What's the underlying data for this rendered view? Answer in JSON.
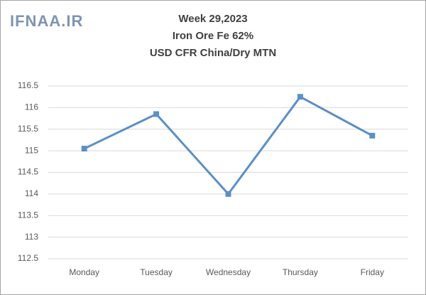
{
  "chart_data": {
    "type": "line",
    "watermark": "IFNAA.IR",
    "title": [
      "Week 29,2023",
      "Iron Ore Fe 62%",
      "USD CFR China/Dry MTN"
    ],
    "categories": [
      "Monday",
      "Tuesday",
      "Wednesday",
      "Thursday",
      "Friday"
    ],
    "series": [
      {
        "name": "Price",
        "color": "#5b8fc7",
        "values": [
          115.05,
          115.85,
          114,
          116.25,
          115.35
        ]
      }
    ],
    "ylim": [
      112.5,
      116.5
    ],
    "yticks": [
      112.5,
      113,
      113.5,
      114,
      114.5,
      115,
      115.5,
      116,
      116.5
    ],
    "grid": true
  }
}
